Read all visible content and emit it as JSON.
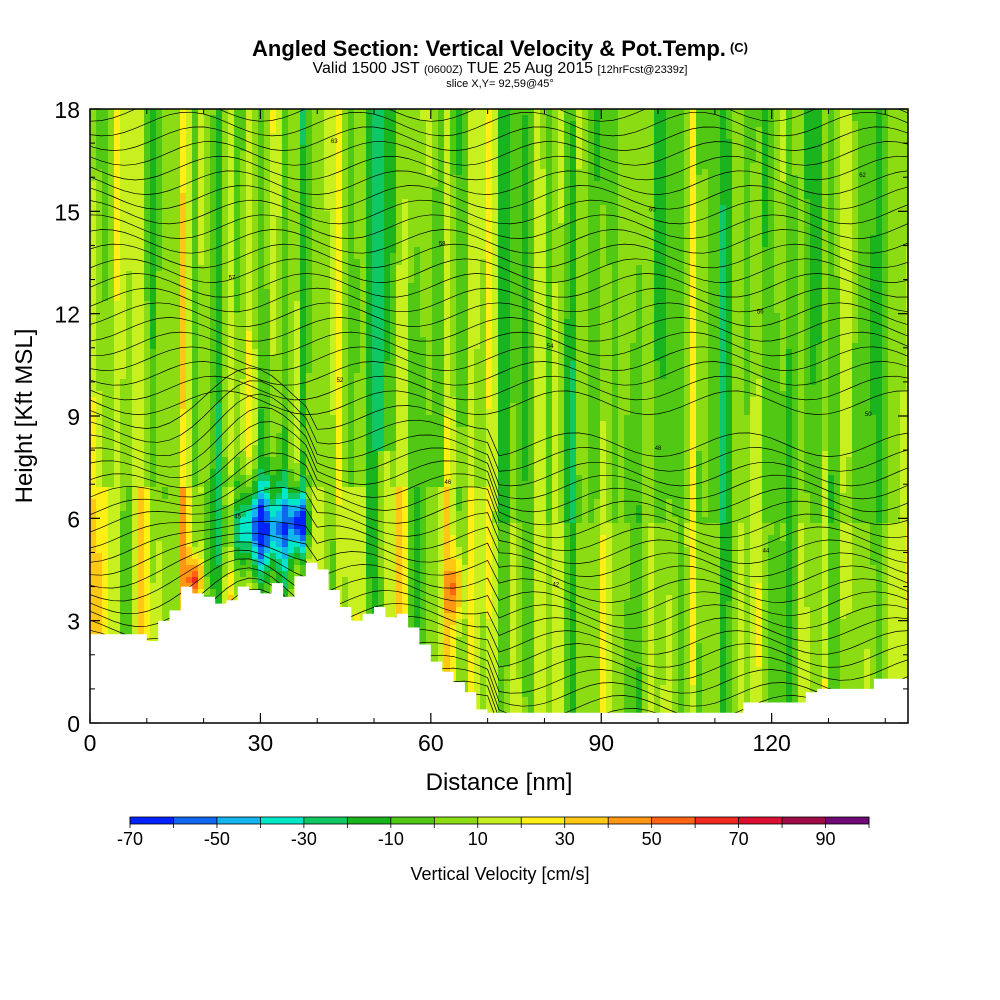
{
  "header": {
    "title": "Angled Section: Vertical Velocity & Pot.Temp.",
    "title_unit": "(C)",
    "valid_prefix": "Valid 1500 JST",
    "valid_utc": "(0600Z)",
    "valid_date": "TUE 25 Aug 2015",
    "forecast": "[12hrFcst@2339z]",
    "slice": "slice X,Y= 92,59@45°"
  },
  "chart_data": {
    "type": "heatmap",
    "xlabel": "Distance [nm]",
    "ylabel": "Height [Kft MSL]",
    "xlim": [
      0,
      144
    ],
    "ylim": [
      0,
      18
    ],
    "xticks": [
      0,
      30,
      60,
      90,
      120
    ],
    "yticks": [
      0,
      3,
      6,
      9,
      12,
      15,
      18
    ],
    "colorbar": {
      "title": "Vertical Velocity [cm/s]",
      "tick_labels": [
        "-70",
        "-50",
        "-30",
        "-10",
        "10",
        "30",
        "50",
        "70",
        "90"
      ],
      "levels": [
        -70,
        -60,
        -50,
        -40,
        -30,
        -20,
        -10,
        0,
        10,
        20,
        30,
        40,
        50,
        60,
        70,
        80,
        90
      ],
      "colors": [
        "#0022ff",
        "#0f66f0",
        "#14b4f0",
        "#00e8c8",
        "#0fc864",
        "#19b41e",
        "#50c814",
        "#8cdc14",
        "#c8f01e",
        "#ffef14",
        "#ffc814",
        "#ff9614",
        "#ff6414",
        "#f0281e",
        "#dc0f32",
        "#a00a46",
        "#6e0a78"
      ]
    },
    "terrain_kft": [
      [
        0,
        2.6
      ],
      [
        6,
        2.6
      ],
      [
        10,
        2.4
      ],
      [
        12,
        3.0
      ],
      [
        14,
        3.3
      ],
      [
        16,
        4.0
      ],
      [
        18,
        3.8
      ],
      [
        20,
        3.7
      ],
      [
        22,
        3.5
      ],
      [
        24,
        3.6
      ],
      [
        26,
        4.0
      ],
      [
        28,
        3.9
      ],
      [
        30,
        3.8
      ],
      [
        32,
        4.1
      ],
      [
        34,
        3.7
      ],
      [
        36,
        4.3
      ],
      [
        38,
        4.7
      ],
      [
        40,
        4.5
      ],
      [
        42,
        3.9
      ],
      [
        44,
        3.4
      ],
      [
        46,
        3.0
      ],
      [
        48,
        3.2
      ],
      [
        50,
        3.4
      ],
      [
        52,
        3.1
      ],
      [
        54,
        3.2
      ],
      [
        56,
        2.8
      ],
      [
        58,
        2.3
      ],
      [
        60,
        1.8
      ],
      [
        62,
        1.5
      ],
      [
        64,
        1.2
      ],
      [
        66,
        0.9
      ],
      [
        68,
        0.4
      ],
      [
        70,
        0.3
      ],
      [
        100,
        0.3
      ],
      [
        112,
        0.3
      ],
      [
        115,
        0.6
      ],
      [
        122,
        0.6
      ],
      [
        126,
        0.9
      ],
      [
        128,
        1.0
      ],
      [
        134,
        1.0
      ],
      [
        138,
        1.3
      ],
      [
        144,
        1.3
      ]
    ],
    "isentrope_labels": [
      "36",
      "39",
      "42",
      "44",
      "45",
      "46",
      "48",
      "50",
      "52",
      "54",
      "56",
      "57",
      "58",
      "60",
      "62",
      "63"
    ]
  }
}
